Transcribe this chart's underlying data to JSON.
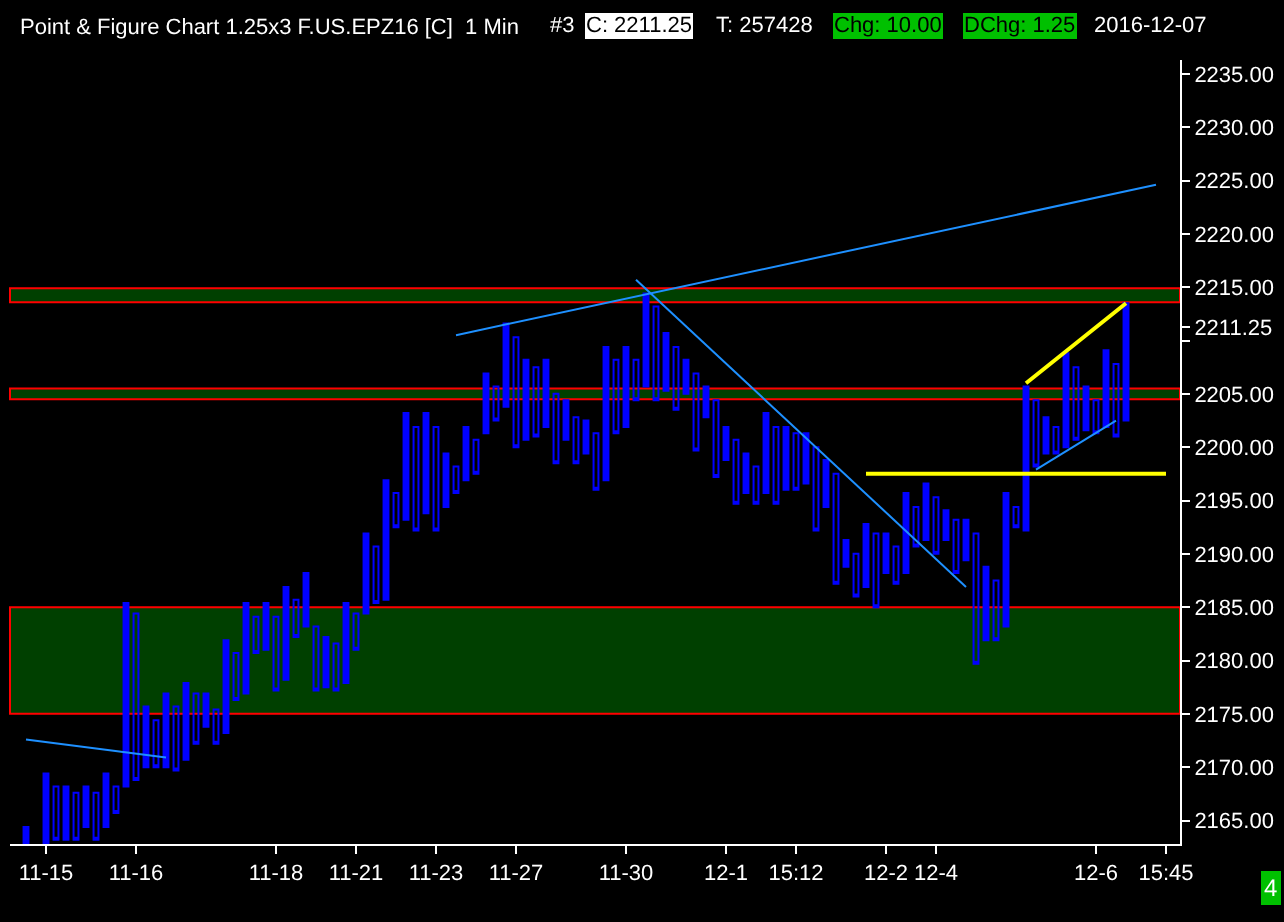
{
  "chart_data": {
    "type": "candlestick",
    "title": "Point & Figure Chart 1.25x3 F.US.EPZ16 [C]  1 Min",
    "annotations": [
      "#3",
      "C: 2211.25",
      "T: 257428",
      "Chg: 10.00",
      "DChg: 1.25",
      "2016-12-07",
      "4"
    ],
    "categories": [
      null,
      null,
      "11-15",
      null,
      null,
      null,
      null,
      null,
      null,
      null,
      null,
      "11-16",
      null,
      null,
      null,
      null,
      null,
      null,
      null,
      null,
      null,
      null,
      null,
      null,
      null,
      "11-18",
      null,
      null,
      null,
      null,
      null,
      null,
      null,
      "11-21",
      null,
      null,
      null,
      null,
      null,
      null,
      null,
      "11-23",
      null,
      null,
      null,
      null,
      null,
      null,
      null,
      "11-27",
      null,
      null,
      null,
      null,
      null,
      null,
      null,
      null,
      null,
      null,
      "11-30",
      null,
      null,
      null,
      null,
      null,
      null,
      null,
      null,
      null,
      "12-1",
      null,
      null,
      null,
      null,
      null,
      null,
      "15:12",
      null,
      null,
      null,
      null,
      null,
      null,
      null,
      null,
      "12-2",
      null,
      null,
      null,
      null,
      "12-4",
      null,
      null,
      null,
      null,
      null,
      null,
      null,
      null,
      null,
      null,
      null,
      null,
      null,
      null,
      null,
      "12-6",
      null,
      null,
      null,
      null,
      null,
      null,
      "15:45"
    ],
    "series": [
      {
        "color": "#0000ff",
        "ohlc": [
          [
            2162.9,
            2164.4,
            2162.9,
            2164.4
          ],
          null,
          [
            2162.9,
            2169.4,
            2162.9,
            2169.4
          ],
          [
            2168.2,
            2168.2,
            2163.2,
            2163.2
          ],
          [
            2163.2,
            2168.2,
            2163.2,
            2168.2
          ],
          [
            2167.6,
            2167.6,
            2163.2,
            2163.2
          ],
          [
            2164.4,
            2168.2,
            2164.4,
            2168.2
          ],
          [
            2167.6,
            2167.6,
            2163.2,
            2163.2
          ],
          [
            2164.4,
            2169.4,
            2164.4,
            2169.4
          ],
          [
            2168.2,
            2168.2,
            2165.7,
            2165.7
          ],
          [
            2168.2,
            2185.4,
            2168.2,
            2185.4
          ],
          [
            2184.4,
            2184.4,
            2168.8,
            2168.8
          ],
          [
            2170.0,
            2175.7,
            2170.0,
            2175.7
          ],
          [
            2174.4,
            2174.4,
            2170.0,
            2170.0
          ],
          [
            2170.0,
            2176.9,
            2170.0,
            2176.9
          ],
          [
            2175.7,
            2175.7,
            2169.7,
            2169.7
          ],
          [
            2170.7,
            2177.9,
            2170.7,
            2177.9
          ],
          [
            2176.9,
            2176.9,
            2172.2,
            2172.2
          ],
          [
            2173.8,
            2176.9,
            2173.8,
            2176.9
          ],
          [
            2175.4,
            2175.4,
            2172.2,
            2172.2
          ],
          [
            2173.2,
            2181.9,
            2173.2,
            2181.9
          ],
          [
            2180.7,
            2180.7,
            2176.3,
            2176.3
          ],
          [
            2176.9,
            2185.4,
            2176.9,
            2185.4
          ],
          [
            2184.1,
            2184.1,
            2180.7,
            2180.7
          ],
          [
            2181.0,
            2185.4,
            2181.0,
            2185.4
          ],
          [
            2184.1,
            2184.1,
            2177.2,
            2177.2
          ],
          [
            2178.2,
            2186.9,
            2178.2,
            2186.9
          ],
          [
            2185.7,
            2185.7,
            2182.2,
            2182.2
          ],
          [
            2183.2,
            2188.2,
            2183.2,
            2188.2
          ],
          [
            2183.2,
            2183.2,
            2177.2,
            2177.2
          ],
          [
            2177.5,
            2182.2,
            2177.5,
            2182.2
          ],
          [
            2181.6,
            2181.6,
            2177.2,
            2177.2
          ],
          [
            2177.9,
            2185.4,
            2177.9,
            2185.4
          ],
          [
            2184.4,
            2184.4,
            2181.0,
            2181.0
          ],
          [
            2184.4,
            2191.9,
            2184.4,
            2191.9
          ],
          [
            2190.7,
            2190.7,
            2185.4,
            2185.4
          ],
          [
            2185.7,
            2196.9,
            2185.7,
            2196.9
          ],
          [
            2195.7,
            2195.7,
            2192.5,
            2192.5
          ],
          [
            2193.2,
            2203.2,
            2193.2,
            2203.2
          ],
          [
            2201.9,
            2201.9,
            2192.2,
            2192.2
          ],
          [
            2193.8,
            2203.2,
            2193.8,
            2203.2
          ],
          [
            2201.9,
            2201.9,
            2192.2,
            2192.2
          ],
          [
            2194.4,
            2199.4,
            2194.4,
            2199.4
          ],
          [
            2198.2,
            2198.2,
            2195.7,
            2195.7
          ],
          [
            2196.9,
            2201.9,
            2196.9,
            2201.9
          ],
          [
            2200.7,
            2200.7,
            2197.5,
            2197.5
          ],
          [
            2201.3,
            2206.9,
            2201.3,
            2206.9
          ],
          [
            2205.7,
            2205.7,
            2202.5,
            2202.5
          ],
          [
            2203.8,
            2211.6,
            2203.8,
            2211.6
          ],
          [
            2210.3,
            2210.3,
            2200.0,
            2200.0
          ],
          [
            2200.7,
            2208.2,
            2200.7,
            2208.2
          ],
          [
            2207.5,
            2207.5,
            2201.0,
            2201.0
          ],
          [
            2201.9,
            2208.2,
            2201.9,
            2208.2
          ],
          [
            2205.0,
            2205.0,
            2198.5,
            2198.5
          ],
          [
            2200.7,
            2204.4,
            2200.7,
            2204.4
          ],
          [
            2202.8,
            2202.8,
            2198.5,
            2198.5
          ],
          [
            2199.4,
            2202.5,
            2199.4,
            2202.5
          ],
          [
            2201.3,
            2201.3,
            2196.0,
            2196.0
          ],
          [
            2196.9,
            2209.4,
            2196.9,
            2209.4
          ],
          [
            2208.2,
            2208.2,
            2201.3,
            2201.3
          ],
          [
            2201.9,
            2209.4,
            2201.9,
            2209.4
          ],
          [
            2208.2,
            2208.2,
            2204.4,
            2204.4
          ],
          [
            2205.7,
            2214.4,
            2205.7,
            2214.4
          ],
          [
            2213.2,
            2213.2,
            2204.4,
            2204.4
          ],
          [
            2205.3,
            2210.7,
            2205.3,
            2210.7
          ],
          [
            2209.4,
            2209.4,
            2203.5,
            2203.5
          ],
          [
            2205.0,
            2208.2,
            2205.0,
            2208.2
          ],
          [
            2206.9,
            2206.9,
            2199.7,
            2199.7
          ],
          [
            2202.8,
            2205.7,
            2202.8,
            2205.7
          ],
          [
            2204.4,
            2204.4,
            2197.2,
            2197.2
          ],
          [
            2198.8,
            2201.9,
            2198.8,
            2201.9
          ],
          [
            2200.7,
            2200.7,
            2194.7,
            2194.7
          ],
          [
            2195.7,
            2199.4,
            2195.7,
            2199.4
          ],
          [
            2198.2,
            2198.2,
            2194.7,
            2194.7
          ],
          [
            2195.7,
            2203.2,
            2195.7,
            2203.2
          ],
          [
            2201.9,
            2201.9,
            2194.7,
            2194.7
          ],
          [
            2196.0,
            2201.9,
            2196.0,
            2201.9
          ],
          [
            2201.3,
            2201.3,
            2196.0,
            2196.0
          ],
          [
            2196.6,
            2201.3,
            2196.6,
            2201.3
          ],
          [
            2200.0,
            2200.0,
            2192.2,
            2192.2
          ],
          [
            2194.4,
            2198.8,
            2194.4,
            2198.8
          ],
          [
            2197.5,
            2197.5,
            2187.2,
            2187.2
          ],
          [
            2188.8,
            2191.3,
            2188.8,
            2191.3
          ],
          [
            2190.0,
            2190.0,
            2186.0,
            2186.0
          ],
          [
            2186.9,
            2192.8,
            2186.9,
            2192.8
          ],
          [
            2191.9,
            2191.9,
            2185.0,
            2185.0
          ],
          [
            2188.2,
            2191.9,
            2188.2,
            2191.9
          ],
          [
            2190.7,
            2190.7,
            2187.2,
            2187.2
          ],
          [
            2188.2,
            2195.7,
            2188.2,
            2195.7
          ],
          [
            2194.4,
            2194.4,
            2190.7,
            2190.7
          ],
          [
            2191.3,
            2196.6,
            2191.3,
            2196.6
          ],
          [
            2195.3,
            2195.3,
            2190.0,
            2190.0
          ],
          [
            2191.3,
            2194.1,
            2191.3,
            2194.1
          ],
          [
            2193.2,
            2193.2,
            2188.2,
            2188.2
          ],
          [
            2189.4,
            2193.2,
            2189.4,
            2193.2
          ],
          [
            2191.9,
            2191.9,
            2179.7,
            2179.7
          ],
          [
            2181.9,
            2188.8,
            2181.9,
            2188.8
          ],
          [
            2187.5,
            2187.5,
            2181.9,
            2181.9
          ],
          [
            2183.2,
            2195.7,
            2183.2,
            2195.7
          ],
          [
            2194.4,
            2194.4,
            2192.5,
            2192.5
          ],
          [
            2192.2,
            2205.7,
            2192.2,
            2205.7
          ],
          [
            2204.4,
            2204.4,
            2198.2,
            2198.2
          ],
          [
            2199.4,
            2202.8,
            2199.4,
            2202.8
          ],
          [
            2201.9,
            2201.9,
            2199.4,
            2199.4
          ],
          [
            2200.0,
            2208.8,
            2200.0,
            2208.8
          ],
          [
            2207.5,
            2207.5,
            2200.7,
            2200.7
          ],
          [
            2201.6,
            2205.7,
            2201.6,
            2205.7
          ],
          [
            2204.4,
            2204.4,
            2201.3,
            2201.3
          ],
          [
            2201.9,
            2209.1,
            2201.9,
            2209.1
          ],
          [
            2207.8,
            2207.8,
            2201.0,
            2201.0
          ],
          [
            2202.5,
            2213.5,
            2202.5,
            2213.5
          ],
          null,
          null,
          null,
          null
        ]
      },
      {
        "type": "line",
        "color": "#1e90ff",
        "values": [
          2172.6,
          null,
          null,
          null,
          null,
          null,
          null,
          null,
          null,
          null,
          null,
          null,
          null,
          null,
          2170.9,
          null,
          null,
          null,
          null,
          null,
          null,
          null,
          null,
          null,
          null,
          null,
          null,
          null,
          null,
          null,
          null,
          null,
          null,
          null,
          null,
          null,
          null,
          null,
          null,
          null,
          null,
          null,
          null,
          null,
          null,
          null,
          null,
          null,
          null,
          null,
          null,
          null,
          null,
          null,
          null,
          null,
          null,
          null,
          null,
          null,
          null,
          null,
          null,
          null,
          null,
          null,
          null,
          null,
          null,
          null,
          null,
          null,
          null,
          null,
          null,
          null,
          null,
          null,
          null,
          null,
          null,
          null,
          null,
          null,
          null,
          null,
          null,
          null,
          null,
          null,
          null,
          null,
          null,
          null,
          null,
          null,
          null,
          null,
          null,
          null,
          null,
          null,
          null,
          null,
          null,
          null,
          null,
          null,
          null,
          null,
          null,
          null,
          null,
          null,
          null
        ]
      },
      {
        "type": "line",
        "color": "#1e90ff",
        "values": [
          null,
          null,
          null,
          null,
          null,
          null,
          null,
          null,
          null,
          null,
          null,
          null,
          null,
          null,
          null,
          null,
          null,
          null,
          null,
          null,
          null,
          null,
          null,
          null,
          null,
          null,
          null,
          null,
          null,
          null,
          null,
          null,
          null,
          null,
          null,
          null,
          null,
          null,
          null,
          null,
          null,
          null,
          null,
          2210.5,
          null,
          null,
          null,
          null,
          null,
          null,
          null,
          null,
          null,
          null,
          null,
          null,
          null,
          null,
          null,
          null,
          null,
          null,
          null,
          null,
          null,
          null,
          null,
          null,
          null,
          null,
          null,
          null,
          null,
          null,
          null,
          null,
          null,
          null,
          null,
          null,
          null,
          null,
          null,
          null,
          null,
          null,
          null,
          null,
          null,
          null,
          null,
          null,
          null,
          null,
          null,
          null,
          null,
          null,
          null,
          null,
          null,
          null,
          null,
          null,
          null,
          null,
          null,
          null,
          null,
          null,
          null,
          null,
          null,
          2224.6,
          null
        ]
      },
      {
        "type": "line",
        "color": "#1e90ff",
        "values": [
          null,
          null,
          null,
          null,
          null,
          null,
          null,
          null,
          null,
          null,
          null,
          null,
          null,
          null,
          null,
          null,
          null,
          null,
          null,
          null,
          null,
          null,
          null,
          null,
          null,
          null,
          null,
          null,
          null,
          null,
          null,
          null,
          null,
          null,
          null,
          null,
          null,
          null,
          null,
          null,
          null,
          null,
          null,
          null,
          null,
          null,
          null,
          null,
          null,
          null,
          null,
          null,
          null,
          null,
          null,
          null,
          null,
          null,
          null,
          null,
          null,
          2215.7,
          null,
          null,
          null,
          null,
          null,
          null,
          null,
          null,
          null,
          null,
          null,
          null,
          null,
          null,
          null,
          null,
          null,
          null,
          null,
          null,
          null,
          null,
          null,
          null,
          null,
          null,
          null,
          null,
          null,
          null,
          null,
          null,
          2186.9,
          null,
          null,
          null,
          null,
          null,
          null,
          null,
          null,
          null,
          null,
          null,
          null,
          null,
          null,
          null,
          null,
          null,
          null,
          null,
          null
        ]
      },
      {
        "type": "line",
        "color": "#1e90ff",
        "values": [
          null,
          null,
          null,
          null,
          null,
          null,
          null,
          null,
          null,
          null,
          null,
          null,
          null,
          null,
          null,
          null,
          null,
          null,
          null,
          null,
          null,
          null,
          null,
          null,
          null,
          null,
          null,
          null,
          null,
          null,
          null,
          null,
          null,
          null,
          null,
          null,
          null,
          null,
          null,
          null,
          null,
          null,
          null,
          null,
          null,
          null,
          null,
          null,
          null,
          null,
          null,
          null,
          null,
          null,
          null,
          null,
          null,
          null,
          null,
          null,
          null,
          null,
          null,
          null,
          null,
          null,
          null,
          null,
          null,
          null,
          null,
          null,
          null,
          null,
          null,
          null,
          null,
          null,
          null,
          null,
          null,
          null,
          null,
          null,
          null,
          null,
          null,
          null,
          null,
          null,
          null,
          null,
          null,
          null,
          null,
          null,
          null,
          null,
          null,
          null,
          null,
          2197.9,
          null,
          null,
          null,
          null,
          null,
          null,
          null,
          2202.5,
          null,
          null,
          null,
          null,
          null
        ]
      },
      {
        "type": "line",
        "color": "#ffff00",
        "values": [
          null,
          null,
          null,
          null,
          null,
          null,
          null,
          null,
          null,
          null,
          null,
          null,
          null,
          null,
          null,
          null,
          null,
          null,
          null,
          null,
          null,
          null,
          null,
          null,
          null,
          null,
          null,
          null,
          null,
          null,
          null,
          null,
          null,
          null,
          null,
          null,
          null,
          null,
          null,
          null,
          null,
          null,
          null,
          null,
          null,
          null,
          null,
          null,
          null,
          null,
          null,
          null,
          null,
          null,
          null,
          null,
          null,
          null,
          null,
          null,
          null,
          null,
          null,
          null,
          null,
          null,
          null,
          null,
          null,
          null,
          null,
          null,
          null,
          null,
          null,
          null,
          null,
          null,
          null,
          null,
          null,
          null,
          null,
          null,
          null,
          null,
          null,
          null,
          null,
          null,
          null,
          null,
          null,
          null,
          null,
          null,
          null,
          null,
          null,
          null,
          2206.0,
          null,
          null,
          null,
          null,
          null,
          null,
          null,
          null,
          null,
          2213.5,
          null,
          null,
          null,
          null
        ]
      },
      {
        "type": "line",
        "color": "#ffff00",
        "values": [
          null,
          null,
          null,
          null,
          null,
          null,
          null,
          null,
          null,
          null,
          null,
          null,
          null,
          null,
          null,
          null,
          null,
          null,
          null,
          null,
          null,
          null,
          null,
          null,
          null,
          null,
          null,
          null,
          null,
          null,
          null,
          null,
          null,
          null,
          null,
          null,
          null,
          null,
          null,
          null,
          null,
          null,
          null,
          null,
          null,
          null,
          null,
          null,
          null,
          null,
          null,
          null,
          null,
          null,
          null,
          null,
          null,
          null,
          null,
          null,
          null,
          null,
          null,
          null,
          null,
          null,
          null,
          null,
          null,
          null,
          null,
          null,
          null,
          null,
          null,
          null,
          null,
          null,
          null,
          null,
          null,
          null,
          null,
          null,
          2197.5,
          null,
          null,
          null,
          null,
          null,
          null,
          null,
          null,
          null,
          null,
          null,
          null,
          null,
          null,
          null,
          null,
          null,
          null,
          null,
          null,
          null,
          null,
          null,
          null,
          null,
          null,
          null,
          null,
          null,
          2197.5
        ]
      }
    ],
    "bands": [
      {
        "axis": "y",
        "from": 2175,
        "to": 2185,
        "color": "#004000"
      },
      {
        "axis": "y",
        "from": 2213.6,
        "to": 2214.9,
        "color": "#004000"
      },
      {
        "axis": "y",
        "from": 2204.5,
        "to": 2205.5,
        "color": "#004000"
      }
    ],
    "ylim": [
      2162.8,
      2236.3
    ],
    "yticks": [
      {
        "value": 2165,
        "label": "2165.00"
      },
      {
        "value": 2170,
        "label": "2170.00"
      },
      {
        "value": 2175,
        "label": "2175.00"
      },
      {
        "value": 2180,
        "label": "2180.00"
      },
      {
        "value": 2185,
        "label": "2185.00"
      },
      {
        "value": 2190,
        "label": "2190.00"
      },
      {
        "value": 2195,
        "label": "2195.00"
      },
      {
        "value": 2200,
        "label": "2200.00"
      },
      {
        "value": 2205,
        "label": "2205.00"
      },
      {
        "value": 2210,
        "label": null
      },
      {
        "value": 2211.25,
        "label": "2211.25"
      },
      {
        "value": 2215,
        "label": "2215.00"
      },
      {
        "value": 2220,
        "label": "2220.00"
      },
      {
        "value": 2225,
        "label": "2225.00"
      },
      {
        "value": 2230,
        "label": "2230.00"
      },
      {
        "value": 2235,
        "label": "2235.00"
      }
    ],
    "grid": false
  }
}
